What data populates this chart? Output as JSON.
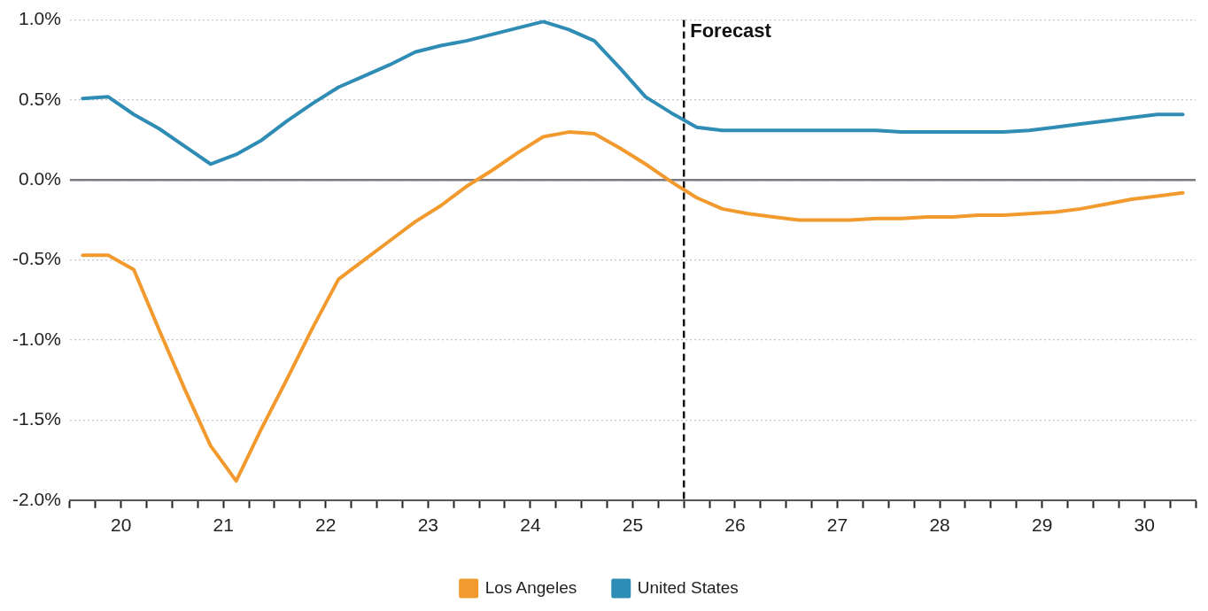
{
  "chart_data": {
    "type": "line",
    "x": [
      19.625,
      19.875,
      20.125,
      20.375,
      20.625,
      20.875,
      21.125,
      21.375,
      21.625,
      21.875,
      22.125,
      22.375,
      22.625,
      22.875,
      23.125,
      23.375,
      23.625,
      23.875,
      24.125,
      24.375,
      24.625,
      24.875,
      25.125,
      25.375,
      25.625,
      25.875,
      26.125,
      26.375,
      26.625,
      26.875,
      27.125,
      27.375,
      27.625,
      27.875,
      28.125,
      28.375,
      28.625,
      28.875,
      29.125,
      29.375,
      29.625,
      29.875,
      30.125,
      30.375
    ],
    "series": [
      {
        "name": "Los Angeles",
        "color": "#f29a2e",
        "values": [
          -0.47,
          -0.47,
          -0.56,
          -0.94,
          -1.31,
          -1.66,
          -1.88,
          -1.55,
          -1.24,
          -0.92,
          -0.62,
          -0.5,
          -0.38,
          -0.26,
          -0.16,
          -0.04,
          0.06,
          0.17,
          0.27,
          0.3,
          0.29,
          0.2,
          0.1,
          -0.01,
          -0.11,
          -0.18,
          -0.21,
          -0.23,
          -0.25,
          -0.25,
          -0.25,
          -0.24,
          -0.24,
          -0.23,
          -0.23,
          -0.22,
          -0.22,
          -0.21,
          -0.2,
          -0.18,
          -0.15,
          -0.12,
          -0.1,
          -0.08
        ]
      },
      {
        "name": "United States",
        "color": "#2f8db5",
        "values": [
          0.51,
          0.52,
          0.41,
          0.32,
          0.21,
          0.1,
          0.16,
          0.25,
          0.37,
          0.48,
          0.58,
          0.65,
          0.72,
          0.8,
          0.84,
          0.87,
          0.91,
          0.95,
          0.99,
          0.94,
          0.87,
          0.7,
          0.52,
          0.42,
          0.33,
          0.31,
          0.31,
          0.31,
          0.31,
          0.31,
          0.31,
          0.31,
          0.3,
          0.3,
          0.3,
          0.3,
          0.3,
          0.31,
          0.33,
          0.35,
          0.37,
          0.39,
          0.41,
          0.41
        ]
      }
    ],
    "xlim": [
      19.5,
      30.5
    ],
    "xticks": [
      {
        "value": 19.5,
        "label": null
      },
      {
        "value": 19.75,
        "label": null
      },
      {
        "value": 20,
        "label": "20"
      },
      {
        "value": 20.25,
        "label": null
      },
      {
        "value": 20.5,
        "label": null
      },
      {
        "value": 20.75,
        "label": null
      },
      {
        "value": 21,
        "label": "21"
      },
      {
        "value": 21.25,
        "label": null
      },
      {
        "value": 21.5,
        "label": null
      },
      {
        "value": 21.75,
        "label": null
      },
      {
        "value": 22,
        "label": "22"
      },
      {
        "value": 22.25,
        "label": null
      },
      {
        "value": 22.5,
        "label": null
      },
      {
        "value": 22.75,
        "label": null
      },
      {
        "value": 23,
        "label": "23"
      },
      {
        "value": 23.25,
        "label": null
      },
      {
        "value": 23.5,
        "label": null
      },
      {
        "value": 23.75,
        "label": null
      },
      {
        "value": 24,
        "label": "24"
      },
      {
        "value": 24.25,
        "label": null
      },
      {
        "value": 24.5,
        "label": null
      },
      {
        "value": 24.75,
        "label": null
      },
      {
        "value": 25,
        "label": "25"
      },
      {
        "value": 25.25,
        "label": null
      },
      {
        "value": 25.5,
        "label": null
      },
      {
        "value": 25.75,
        "label": null
      },
      {
        "value": 26,
        "label": "26"
      },
      {
        "value": 26.25,
        "label": null
      },
      {
        "value": 26.5,
        "label": null
      },
      {
        "value": 26.75,
        "label": null
      },
      {
        "value": 27,
        "label": "27"
      },
      {
        "value": 27.25,
        "label": null
      },
      {
        "value": 27.5,
        "label": null
      },
      {
        "value": 27.75,
        "label": null
      },
      {
        "value": 28,
        "label": "28"
      },
      {
        "value": 28.25,
        "label": null
      },
      {
        "value": 28.5,
        "label": null
      },
      {
        "value": 28.75,
        "label": null
      },
      {
        "value": 29,
        "label": "29"
      },
      {
        "value": 29.25,
        "label": null
      },
      {
        "value": 29.5,
        "label": null
      },
      {
        "value": 29.75,
        "label": null
      },
      {
        "value": 30,
        "label": "30"
      },
      {
        "value": 30.25,
        "label": null
      },
      {
        "value": 30.5,
        "label": null
      }
    ],
    "ylim": [
      -2,
      1
    ],
    "yticks": [
      {
        "value": -2,
        "label": "-2.0%"
      },
      {
        "value": -1.5,
        "label": "-1.5%"
      },
      {
        "value": -1,
        "label": "-1.0%"
      },
      {
        "value": -0.5,
        "label": "-0.5%"
      },
      {
        "value": 0,
        "label": "0.0%"
      },
      {
        "value": 0.5,
        "label": "0.5%"
      },
      {
        "value": 1,
        "label": "1.0%"
      }
    ],
    "grid": "y",
    "legend": "bottom",
    "marker": "none",
    "line_style": "solid",
    "ref_lines": [
      {
        "axis": "x",
        "value": 25.5,
        "label": "Forecast",
        "color": "#111111",
        "line_style": "dashed"
      },
      {
        "axis": "y",
        "value": 0,
        "label": null,
        "color": "#7a7a80",
        "line_style": "solid"
      }
    ]
  }
}
